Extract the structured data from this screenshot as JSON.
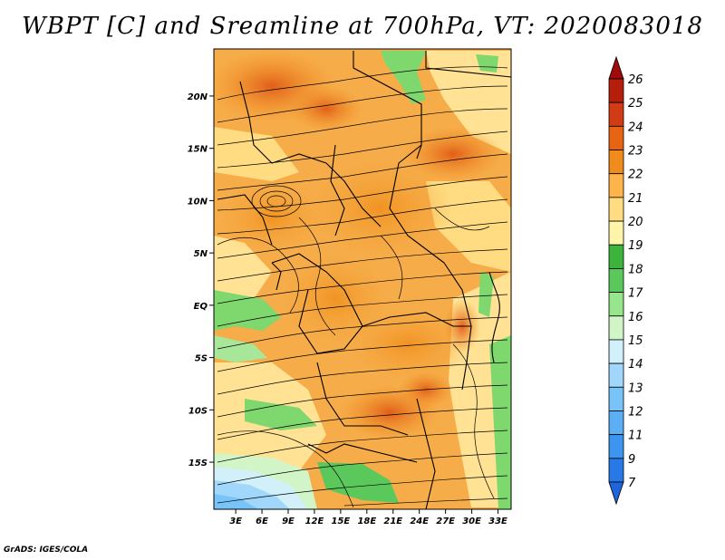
{
  "title": "WBPT [C] and Sreamline at 700hPa, VT: 2020083018",
  "credit": "GrADS: IGES/COLA",
  "lat_labels": [
    "20N",
    "15N",
    "10N",
    "5N",
    "EQ",
    "5S",
    "10S",
    "15S"
  ],
  "lat_values": [
    20,
    15,
    10,
    5,
    0,
    -5,
    -10,
    -15
  ],
  "lon_labels": [
    "3E",
    "6E",
    "9E",
    "12E",
    "15E",
    "18E",
    "21E",
    "24E",
    "27E",
    "30E",
    "33E"
  ],
  "lon_values": [
    3,
    6,
    9,
    12,
    15,
    18,
    21,
    24,
    27,
    30,
    33
  ],
  "map_extent": {
    "lon": [
      0.5,
      34.5
    ],
    "lat": [
      -19.5,
      24.5
    ]
  },
  "colorbar": {
    "labels": [
      "7",
      "9",
      "11",
      "12",
      "13",
      "14",
      "15",
      "16",
      "17",
      "18",
      "19",
      "20",
      "21",
      "22",
      "23",
      "24",
      "25",
      "26"
    ],
    "colors": [
      "#1e64dc",
      "#2878e6",
      "#3c96f0",
      "#5aaff5",
      "#78c3f8",
      "#a0d7fa",
      "#d2f0fa",
      "#d2f5c8",
      "#96e68c",
      "#5ac85a",
      "#3cb43c",
      "#fff5aa",
      "#ffdc82",
      "#ffb44b",
      "#f08c1e",
      "#e66414",
      "#d23c14",
      "#b41e0a",
      "#a00a0a"
    ]
  }
}
